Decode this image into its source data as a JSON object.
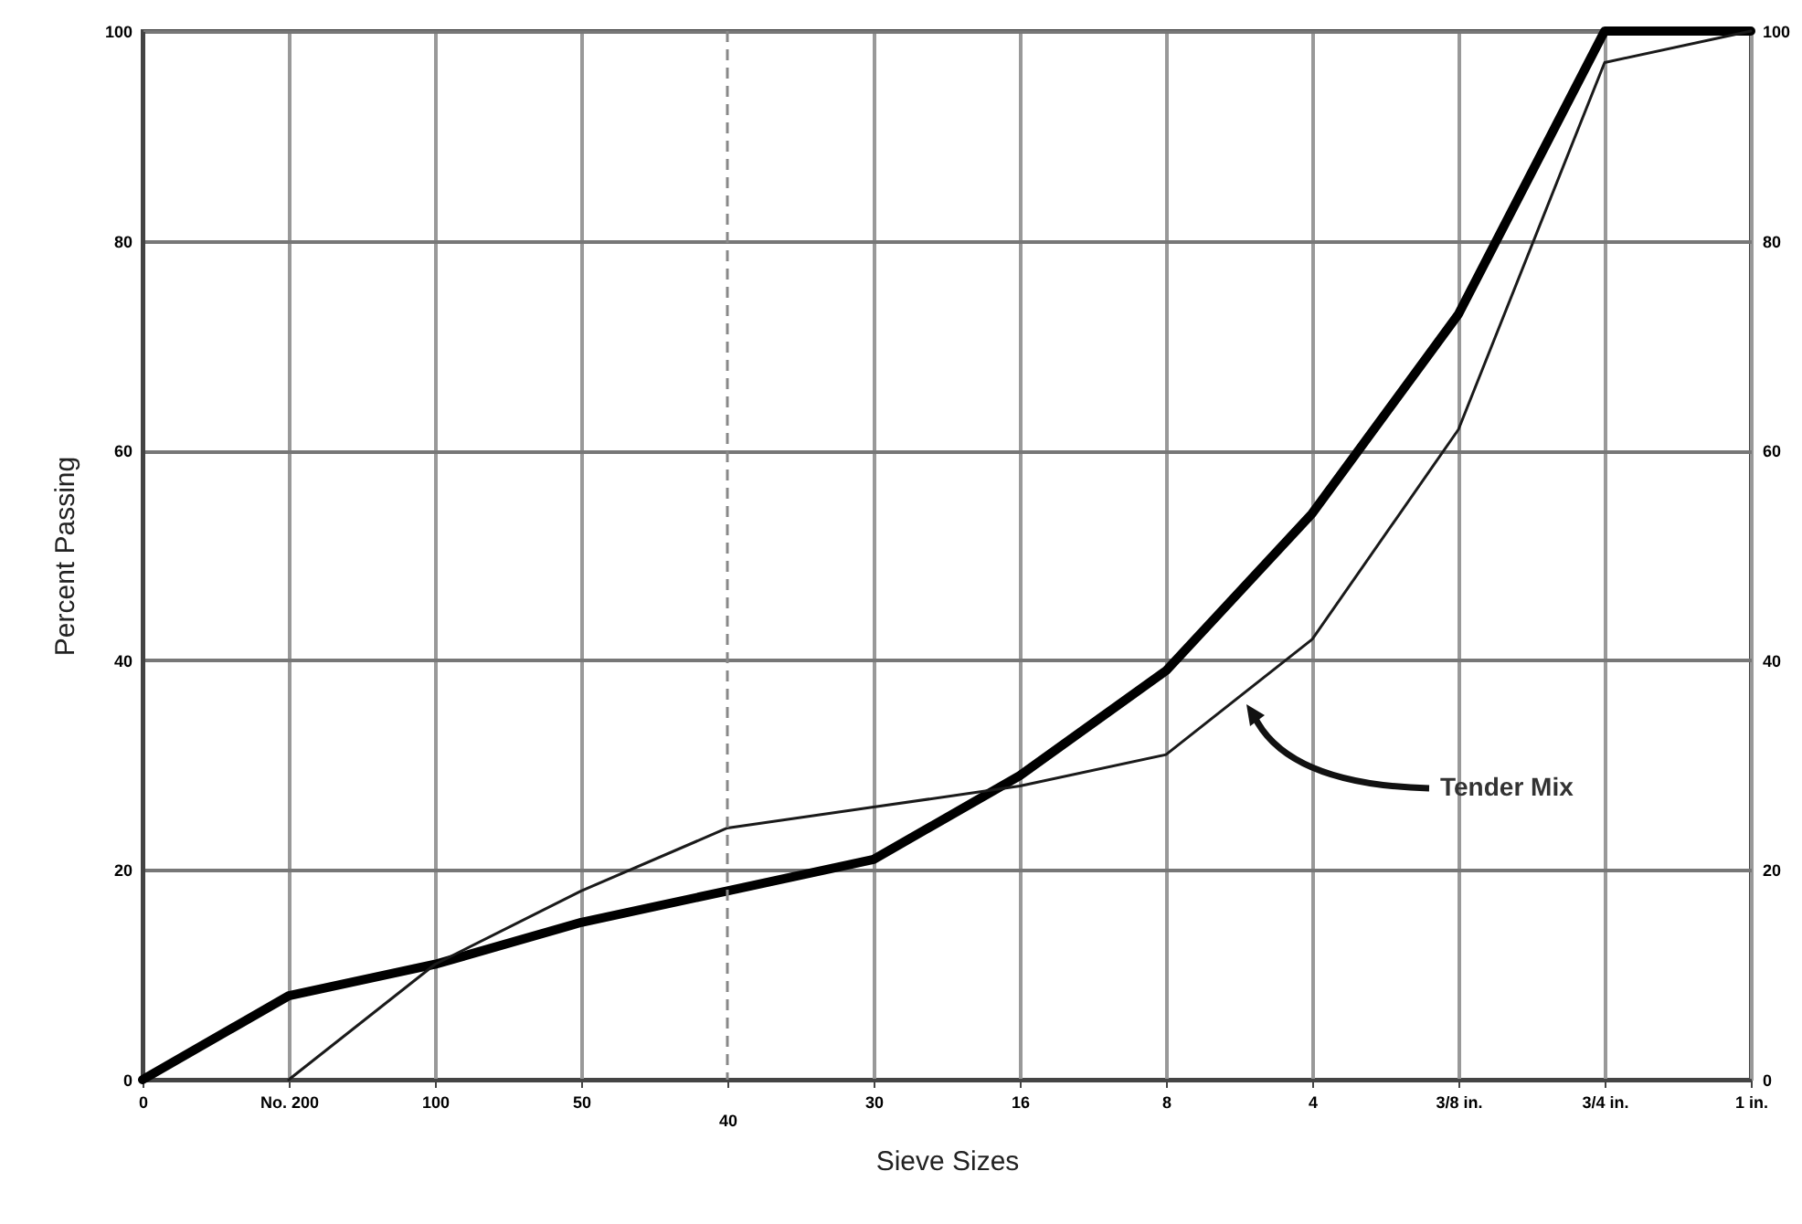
{
  "chart_data": {
    "type": "line",
    "xlabel": "Sieve Sizes",
    "ylabel": "Percent Passing",
    "categories": [
      "0",
      "No. 200",
      "100",
      "50",
      "40",
      "30",
      "16",
      "8",
      "4",
      "3/8 in.",
      "3/4 in.",
      "1 in."
    ],
    "ylim": [
      0,
      100
    ],
    "yticks": [
      0,
      20,
      40,
      60,
      80,
      100
    ],
    "y2lim": [
      0,
      100
    ],
    "y2ticks": [
      0,
      20,
      40,
      60,
      80,
      100
    ],
    "grid": true,
    "series": [
      {
        "color": "#000000",
        "values": [
          0,
          8,
          11,
          15,
          18,
          21,
          29,
          39,
          54,
          73,
          100,
          100
        ]
      },
      {
        "color": "#1a1a1a",
        "values": [
          null,
          0,
          11,
          18,
          24,
          26,
          28,
          31,
          42,
          62,
          97,
          100
        ]
      }
    ],
    "ref_lines": [
      {
        "axis": "x",
        "value": "40",
        "line_style": "dashed"
      }
    ],
    "annotations": [
      "Tender Mix"
    ]
  }
}
